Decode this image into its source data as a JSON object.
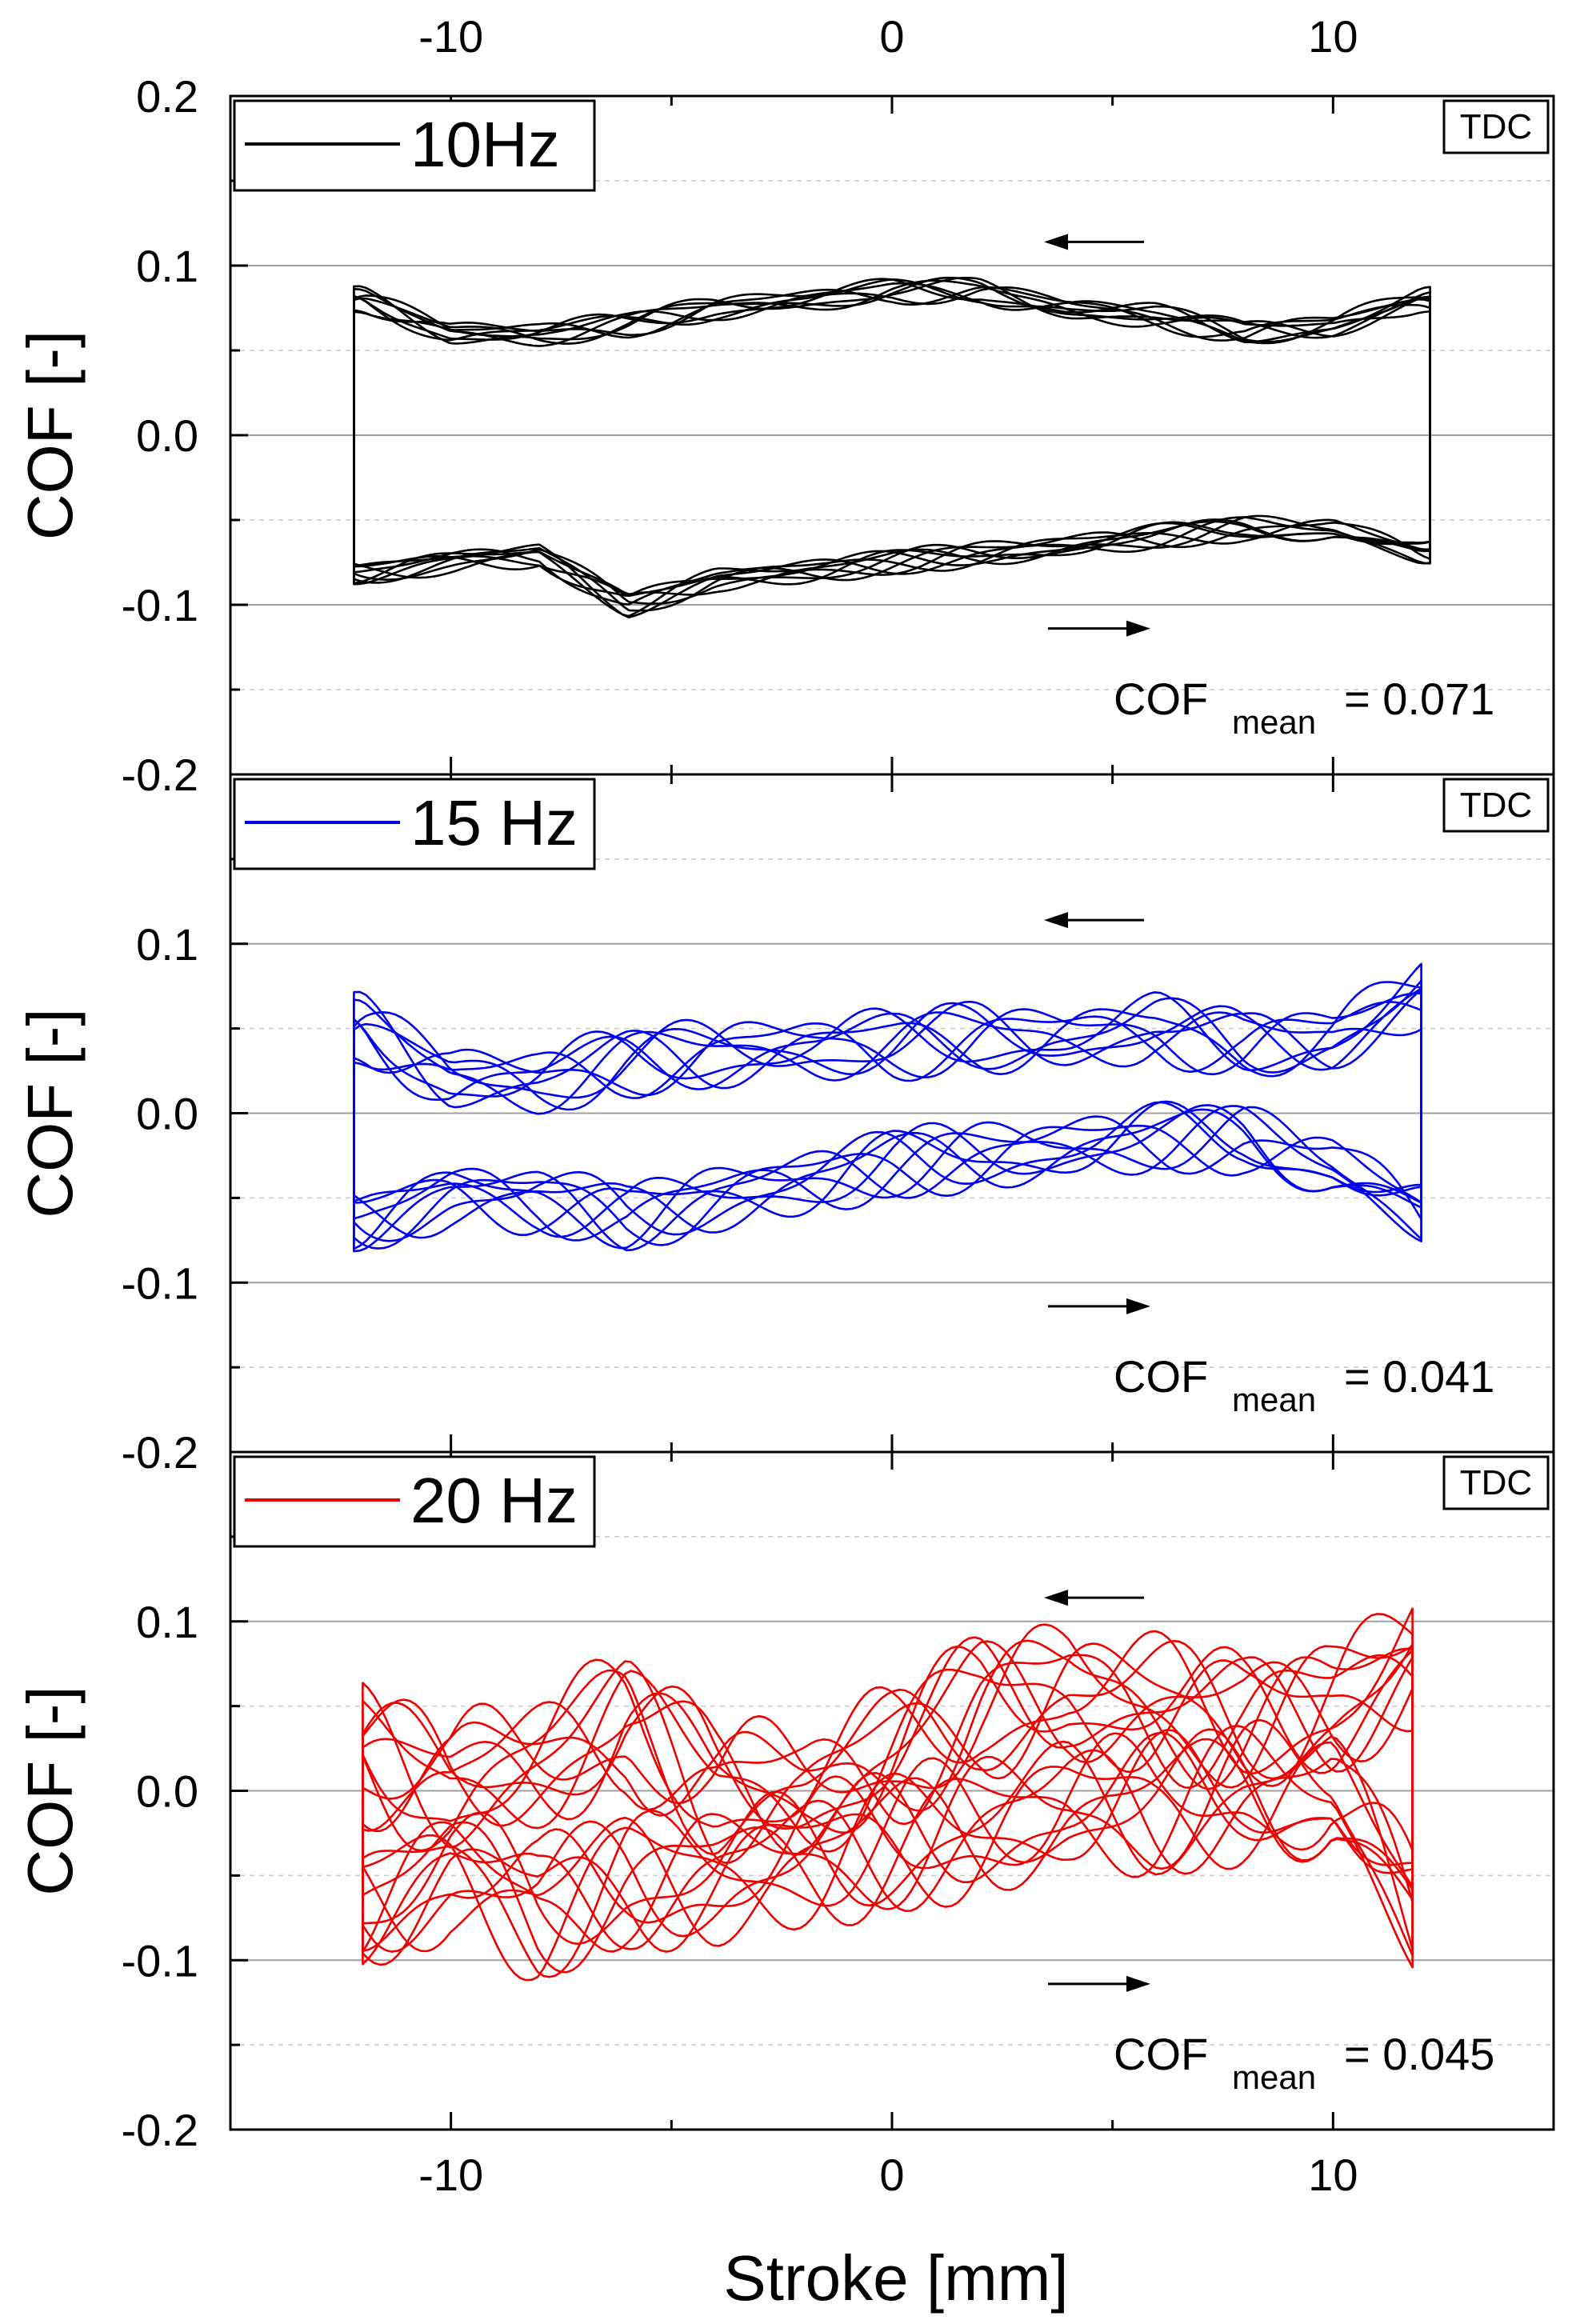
{
  "figure": {
    "xlabel": "Stroke [mm]",
    "xlim": [
      -15,
      15
    ],
    "x_major_ticks": [
      -10,
      0,
      10
    ],
    "x_minor_ticks": [
      -15,
      -5,
      5,
      15
    ],
    "x_tick_labels": [
      "-10",
      "0",
      "10"
    ],
    "top_x_tick_labels": [
      "-10",
      "0",
      "10"
    ]
  },
  "chart_data": [
    {
      "type": "line",
      "title": "",
      "legend": "10Hz",
      "color": "#000000",
      "corner_label": "TDC",
      "xlabel": "Stroke [mm]",
      "ylabel": "COF [-]",
      "ylim": [
        -0.2,
        0.2
      ],
      "yticks": [
        "0.2",
        "0.1",
        "0.0",
        "-0.1",
        "-0.2"
      ],
      "stroke_range": [
        -12.2,
        12.2
      ],
      "cof_mean_label": "COF",
      "cof_mean_subscript": "mean",
      "cof_mean_value": "= 0.071",
      "series": [
        {
          "name": "upper branch (decreasing stroke)",
          "x": [
            -12.0,
            -10.0,
            -8.0,
            -6.0,
            -4.0,
            -2.0,
            0.0,
            2.0,
            4.0,
            6.0,
            8.0,
            10.0,
            12.0
          ],
          "values": [
            0.08,
            0.06,
            0.06,
            0.065,
            0.075,
            0.08,
            0.085,
            0.085,
            0.075,
            0.07,
            0.06,
            0.065,
            0.08
          ]
        },
        {
          "name": "lower branch (increasing stroke)",
          "x": [
            -12.0,
            -10.0,
            -8.0,
            -6.0,
            -4.0,
            -2.0,
            0.0,
            2.0,
            4.0,
            6.0,
            8.0,
            10.0,
            12.0
          ],
          "values": [
            -0.08,
            -0.075,
            -0.07,
            -0.1,
            -0.085,
            -0.08,
            -0.075,
            -0.07,
            -0.065,
            -0.06,
            -0.055,
            -0.055,
            -0.07
          ]
        }
      ],
      "osc_amplitude": 0.008,
      "cycles": 8
    },
    {
      "type": "line",
      "title": "",
      "legend": "15 Hz",
      "color": "#0000ee",
      "corner_label": "TDC",
      "xlabel": "Stroke [mm]",
      "ylabel": "COF [-]",
      "ylim": [
        -0.2,
        0.2
      ],
      "yticks": [
        "",
        "0.1",
        "0.0",
        "-0.1",
        "-0.2"
      ],
      "stroke_range": [
        -12.2,
        12.0
      ],
      "cof_mean_label": "COF",
      "cof_mean_subscript": "mean",
      "cof_mean_value": "= 0.041",
      "series": [
        {
          "name": "upper branch (decreasing stroke)",
          "x": [
            -12.0,
            -10.0,
            -8.0,
            -6.0,
            -4.0,
            -2.0,
            0.0,
            2.0,
            4.0,
            6.0,
            8.0,
            10.0,
            12.0
          ],
          "values": [
            0.05,
            0.02,
            0.02,
            0.03,
            0.035,
            0.04,
            0.04,
            0.045,
            0.045,
            0.05,
            0.04,
            0.045,
            0.07
          ]
        },
        {
          "name": "lower branch (increasing stroke)",
          "x": [
            -12.0,
            -10.0,
            -8.0,
            -6.0,
            -4.0,
            -2.0,
            0.0,
            2.0,
            4.0,
            6.0,
            8.0,
            10.0,
            12.0
          ],
          "values": [
            -0.06,
            -0.05,
            -0.05,
            -0.06,
            -0.05,
            -0.04,
            -0.03,
            -0.025,
            -0.02,
            -0.015,
            -0.015,
            -0.03,
            -0.06
          ]
        }
      ],
      "osc_amplitude": 0.022,
      "cycles": 8
    },
    {
      "type": "line",
      "title": "",
      "legend": "20 Hz",
      "color": "#ee0000",
      "corner_label": "TDC",
      "xlabel": "Stroke [mm]",
      "ylabel": "COF [-]",
      "ylim": [
        -0.2,
        0.2
      ],
      "yticks": [
        "",
        "0.1",
        "0.0",
        "-0.1",
        "-0.2"
      ],
      "stroke_range": [
        -12.0,
        11.8
      ],
      "cof_mean_label": "COF",
      "cof_mean_subscript": "mean",
      "cof_mean_value": "= 0.045",
      "series": [
        {
          "name": "upper branch (decreasing stroke)",
          "x": [
            -12.0,
            -10.0,
            -8.0,
            -6.0,
            -4.0,
            -2.0,
            0.0,
            2.0,
            4.0,
            6.0,
            8.0,
            10.0,
            12.0
          ],
          "values": [
            0.02,
            0.0,
            0.02,
            0.04,
            0.0,
            0.0,
            0.02,
            0.05,
            0.06,
            0.05,
            0.04,
            0.05,
            0.08
          ]
        },
        {
          "name": "lower branch (increasing stroke)",
          "x": [
            -12.0,
            -10.0,
            -8.0,
            -6.0,
            -4.0,
            -2.0,
            0.0,
            2.0,
            4.0,
            6.0,
            8.0,
            10.0,
            12.0
          ],
          "values": [
            -0.06,
            -0.05,
            -0.07,
            -0.05,
            -0.05,
            -0.04,
            -0.03,
            -0.02,
            -0.01,
            -0.01,
            0.0,
            0.0,
            -0.08
          ]
        }
      ],
      "osc_amplitude": 0.045,
      "cycles": 10
    }
  ]
}
